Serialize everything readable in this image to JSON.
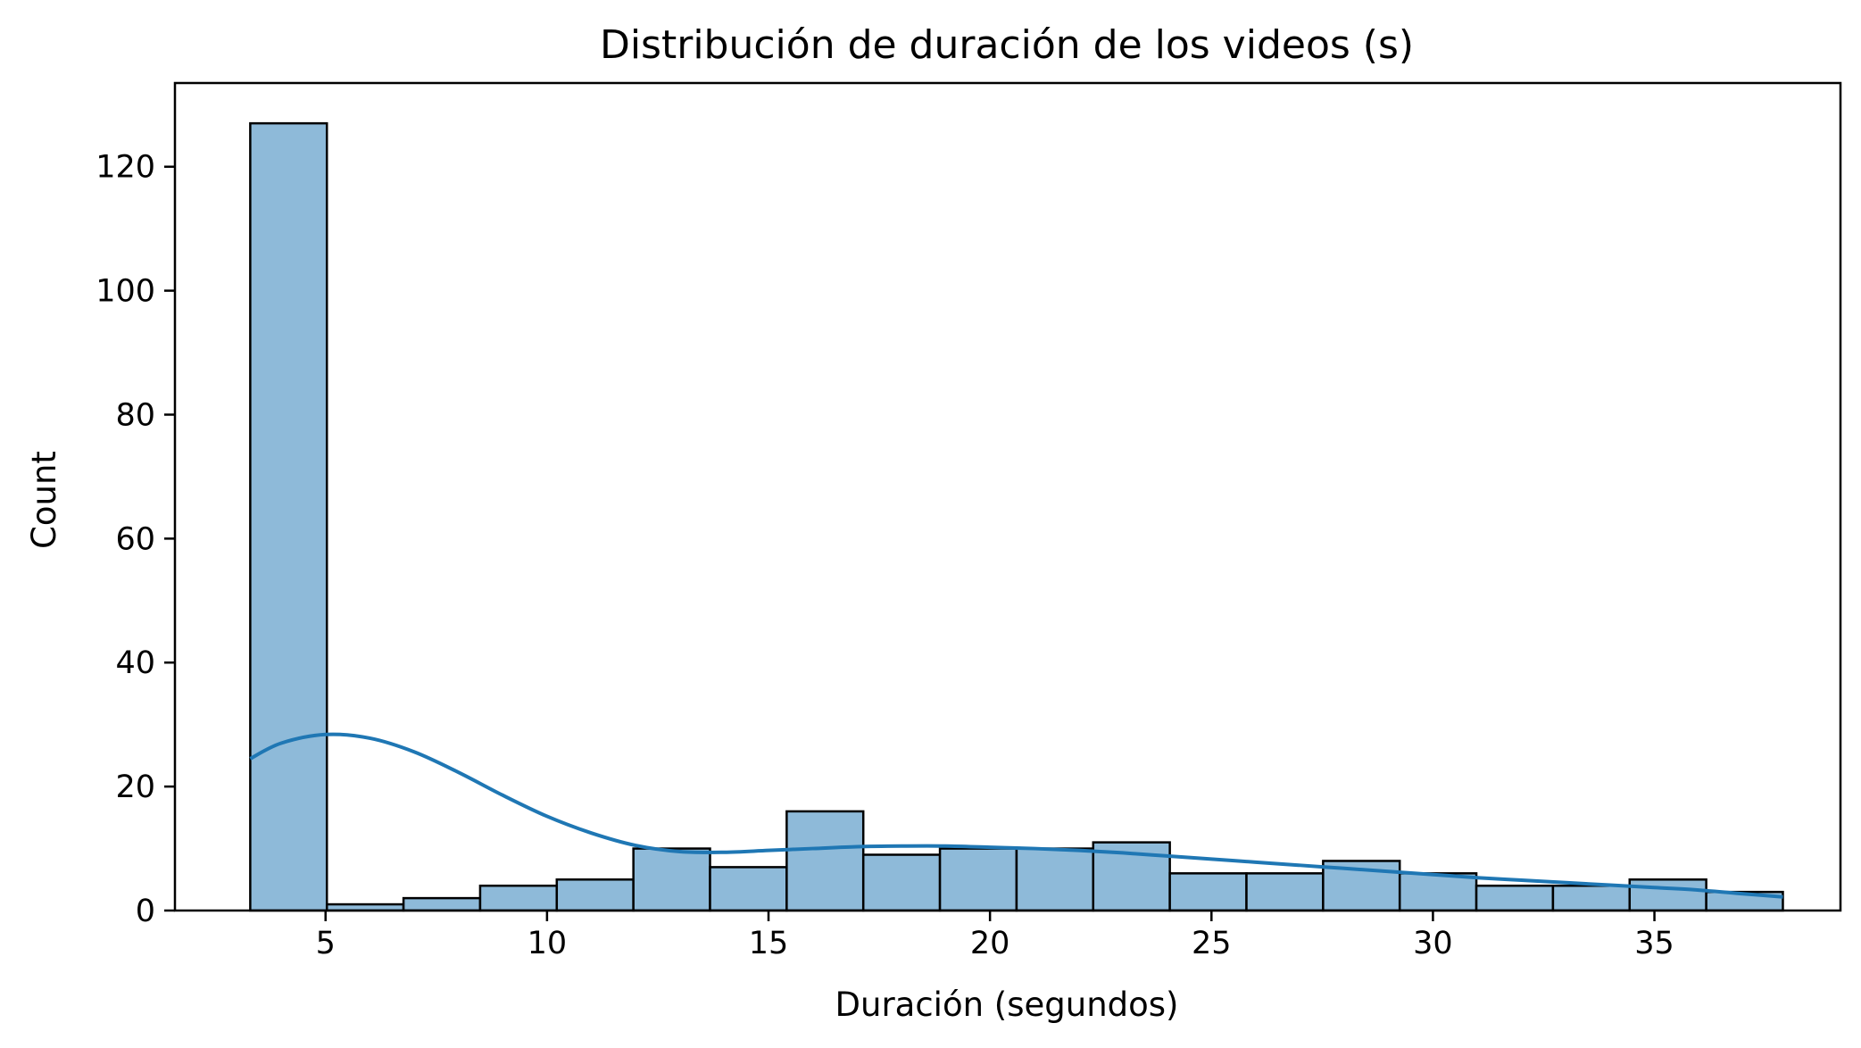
{
  "chart_data": {
    "type": "bar",
    "title": "Distribución de duración de los videos (s)",
    "xlabel": "Duración (segundos)",
    "ylabel": "Count",
    "xlim": [
      1.6,
      39.2
    ],
    "ylim": [
      0,
      133.5
    ],
    "x_ticks": [
      5,
      10,
      15,
      20,
      25,
      30,
      35
    ],
    "y_ticks": [
      0,
      20,
      40,
      60,
      80,
      100,
      120
    ],
    "grid": false,
    "legend": "none",
    "bar_color": "#8ebad9",
    "bar_edge_color": "#000000",
    "kde_color": "#1f77b4",
    "bins": {
      "edges": [
        3.3,
        5.03,
        6.76,
        8.49,
        10.22,
        11.95,
        13.68,
        15.41,
        17.14,
        18.87,
        20.6,
        22.33,
        24.06,
        25.79,
        27.52,
        29.25,
        30.98,
        32.71,
        34.44,
        36.17,
        37.9
      ],
      "counts": [
        127,
        1,
        2,
        4,
        5,
        10,
        7,
        16,
        9,
        10,
        10,
        11,
        6,
        6,
        8,
        6,
        4,
        4,
        5,
        3
      ]
    },
    "kde": {
      "x": [
        3.3,
        4.0,
        5.0,
        6.0,
        7.0,
        8.0,
        9.0,
        10.0,
        11.0,
        12.0,
        13.0,
        14.0,
        15.0,
        16.0,
        17.0,
        18.0,
        19.0,
        20.0,
        21.0,
        22.0,
        23.0,
        24.0,
        25.0,
        26.0,
        27.0,
        28.0,
        29.0,
        30.0,
        31.0,
        32.0,
        33.0,
        34.0,
        35.0,
        36.0,
        37.0,
        37.9
      ],
      "y": [
        24.5,
        27.0,
        28.4,
        27.8,
        25.6,
        22.3,
        18.6,
        15.2,
        12.5,
        10.5,
        9.5,
        9.4,
        9.7,
        10.0,
        10.3,
        10.4,
        10.4,
        10.2,
        10.0,
        9.7,
        9.3,
        8.8,
        8.3,
        7.8,
        7.3,
        6.8,
        6.3,
        5.8,
        5.3,
        4.9,
        4.5,
        4.1,
        3.7,
        3.3,
        2.7,
        2.2
      ]
    }
  }
}
